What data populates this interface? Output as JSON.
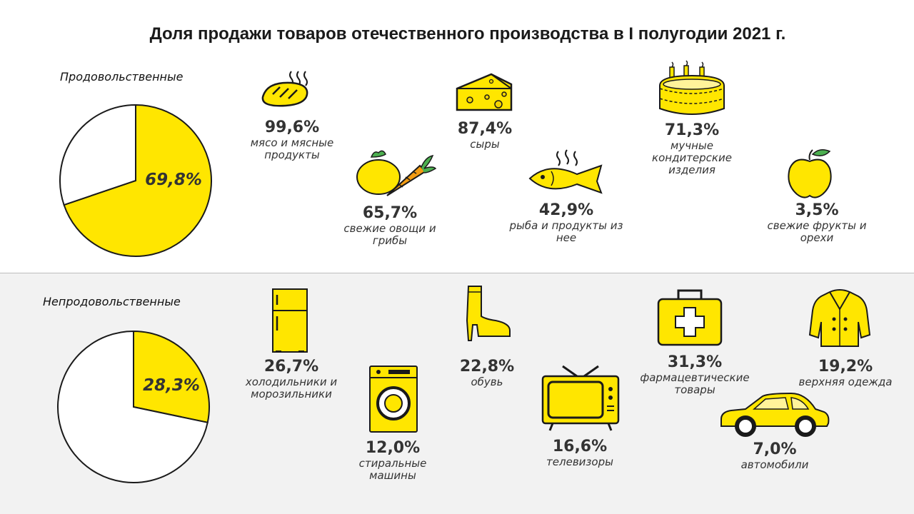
{
  "title": "Доля продажи товаров отечественного производства в I полугодии 2021 г.",
  "colors": {
    "accent": "#FFE600",
    "outline": "#1a1a1a",
    "text": "#333333",
    "panel": "#F2F2F2"
  },
  "chart_data": [
    {
      "type": "pie",
      "title": "Продовольственные",
      "slices": [
        {
          "name": "",
          "value": 69.8,
          "label": "69,8%",
          "color": "#FFE600"
        },
        {
          "name": "",
          "value": 30.2,
          "label": "",
          "color": "#FFFFFF"
        }
      ],
      "items": [
        {
          "value": 99.6,
          "label": "99,6%",
          "name": "мясо и мясные продукты",
          "icon": "steak-icon"
        },
        {
          "value": 87.4,
          "label": "87,4%",
          "name": "сыры",
          "icon": "cheese-icon"
        },
        {
          "value": 71.3,
          "label": "71,3%",
          "name": "мучные кондитерские изделия",
          "icon": "cake-icon"
        },
        {
          "value": 65.7,
          "label": "65,7%",
          "name": "свежие овощи и грибы",
          "icon": "vegetables-icon"
        },
        {
          "value": 42.9,
          "label": "42,9%",
          "name": "рыба и продукты из нее",
          "icon": "fish-icon"
        },
        {
          "value": 3.5,
          "label": "3,5%",
          "name": "свежие фрукты и орехи",
          "icon": "apple-icon"
        }
      ]
    },
    {
      "type": "pie",
      "title": "Непродовольственные",
      "slices": [
        {
          "name": "",
          "value": 28.3,
          "label": "28,3%",
          "color": "#FFE600"
        },
        {
          "name": "",
          "value": 71.7,
          "label": "",
          "color": "#FFFFFF"
        }
      ],
      "items": [
        {
          "value": 26.7,
          "label": "26,7%",
          "name": "холодильники и морозильники",
          "icon": "fridge-icon"
        },
        {
          "value": 12.0,
          "label": "12,0%",
          "name": "стиральные машины",
          "icon": "washing-machine-icon"
        },
        {
          "value": 22.8,
          "label": "22,8%",
          "name": "обувь",
          "icon": "boot-icon"
        },
        {
          "value": 16.6,
          "label": "16,6%",
          "name": "телевизоры",
          "icon": "tv-icon"
        },
        {
          "value": 31.3,
          "label": "31,3%",
          "name": "фармацевтические товары",
          "icon": "first-aid-icon"
        },
        {
          "value": 19.2,
          "label": "19,2%",
          "name": "верхняя одежда",
          "icon": "coat-icon"
        },
        {
          "value": 7.0,
          "label": "7,0%",
          "name": "автомобили",
          "icon": "car-icon"
        }
      ]
    }
  ]
}
